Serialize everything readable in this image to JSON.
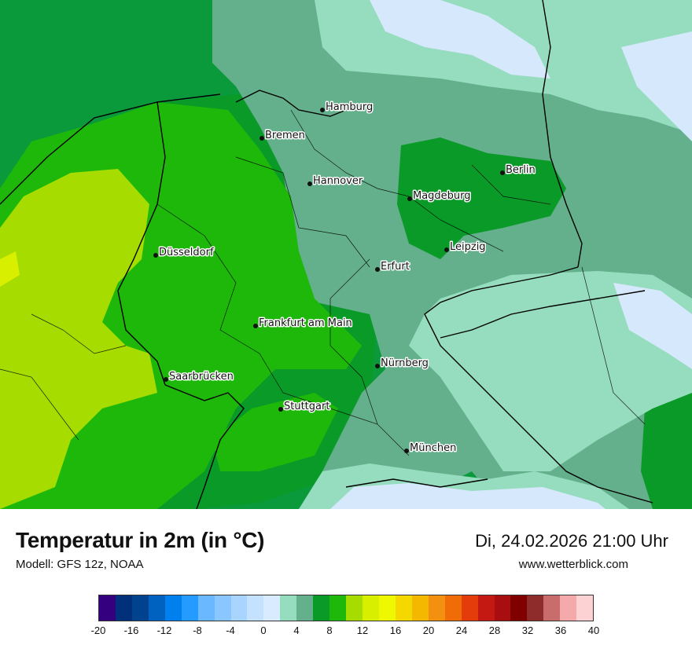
{
  "map": {
    "cities": [
      {
        "name": "Hamburg"
      },
      {
        "name": "Bremen"
      },
      {
        "name": "Berlin"
      },
      {
        "name": "Hannover"
      },
      {
        "name": "Magdeburg"
      },
      {
        "name": "Leipzig"
      },
      {
        "name": "Düsseldorf"
      },
      {
        "name": "Erfurt"
      },
      {
        "name": "Frankfurt am Main"
      },
      {
        "name": "Nürnberg"
      },
      {
        "name": "Saarbrücken"
      },
      {
        "name": "Stuttgart"
      },
      {
        "name": "München"
      }
    ],
    "colors": {
      "sea": "#0a9a3c",
      "c0_2": "#d6e9fc",
      "c2_4": "#96dcbe",
      "c4_6": "#64b08c",
      "c6_8": "#0a9a28",
      "c8_10": "#1eb80a",
      "c10_12": "#a6dc00"
    }
  },
  "header": {
    "title": "Temperatur in 2m (in °C)",
    "model": "Modell: GFS 12z, NOAA",
    "datetime": "Di, 24.02.2026 21:00 Uhr",
    "website": "www.wetterblick.com"
  },
  "legend": {
    "colors": [
      "#340080",
      "#00307a",
      "#00428e",
      "#0062c0",
      "#0080ee",
      "#249cff",
      "#6ab8ff",
      "#8ac6ff",
      "#a8d4fe",
      "#c4e2fe",
      "#d9ebfe",
      "#96dcbe",
      "#64b08c",
      "#0a9a28",
      "#1eb80a",
      "#a6dc00",
      "#d8f000",
      "#eef800",
      "#f4d800",
      "#f4b800",
      "#f49010",
      "#f06c06",
      "#e43c0a",
      "#c41812",
      "#a80e10",
      "#800000",
      "#8e2c2c",
      "#c86c6c",
      "#f4aaaa",
      "#fcd2d2"
    ],
    "ticks": [
      "-20",
      "-16",
      "-12",
      "-8",
      "-4",
      "0",
      "4",
      "8",
      "12",
      "16",
      "20",
      "24",
      "28",
      "32",
      "36",
      "40"
    ]
  }
}
